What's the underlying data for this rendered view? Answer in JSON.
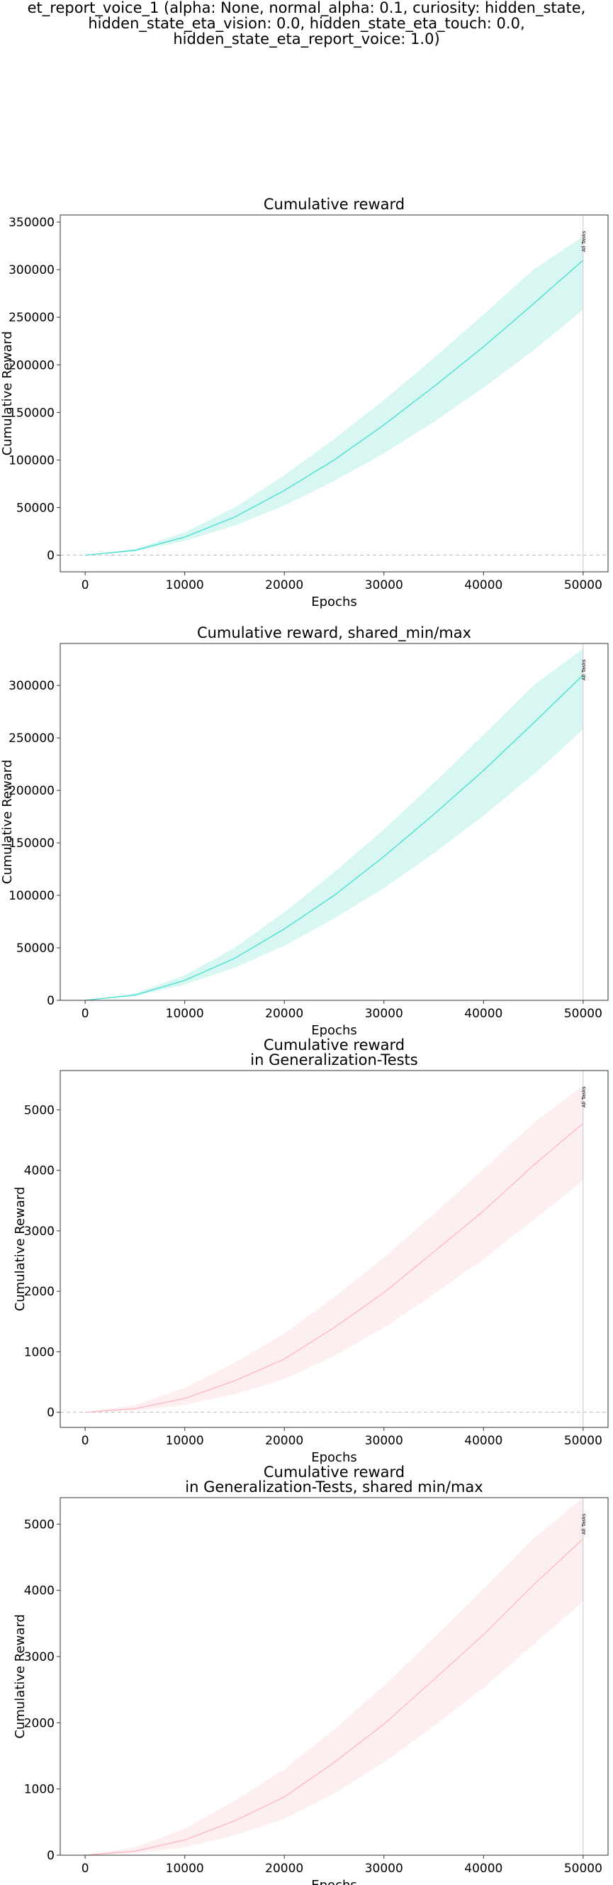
{
  "figure": {
    "suptitle_lines": [
      "et_report_voice_1 (alpha: None, normal_alpha: 0.1, curiosity: hidden_state,",
      "hidden_state_eta_vision: 0.0, hidden_state_eta_touch: 0.0,",
      "hidden_state_eta_report_voice: 1.0)"
    ]
  },
  "chart_data": [
    {
      "type": "line",
      "title_lines": [
        "Cumulative reward"
      ],
      "xlabel": "Epochs",
      "ylabel": "Cumulative Reward",
      "xlim": [
        -2500,
        52500
      ],
      "ylim": [
        -17500,
        357500
      ],
      "xticks": [
        0,
        10000,
        20000,
        30000,
        40000,
        50000
      ],
      "yticks": [
        0,
        50000,
        100000,
        150000,
        200000,
        250000,
        300000,
        350000
      ],
      "hline_zero": true,
      "vline": {
        "x": 50000,
        "label": "All Tasks"
      },
      "color": "#40e0d0",
      "band_color": "#d8f7f3",
      "series": [
        {
          "x": [
            0,
            5000,
            10000,
            15000,
            20000,
            25000,
            30000,
            35000,
            40000,
            45000,
            50000
          ],
          "mean": [
            0,
            5000,
            19000,
            40000,
            68000,
            100000,
            137000,
            177000,
            219000,
            264000,
            310000
          ],
          "min": [
            0,
            4000,
            15000,
            31000,
            52000,
            78000,
            107000,
            140000,
            176000,
            215000,
            258000
          ],
          "max": [
            0,
            6500,
            24000,
            50000,
            84000,
            122000,
            163000,
            207000,
            253000,
            300000,
            335000
          ]
        }
      ]
    },
    {
      "type": "line",
      "title_lines": [
        "Cumulative reward, shared_min/max"
      ],
      "xlabel": "Epochs",
      "ylabel": "Cumulative Reward",
      "xlim": [
        -2500,
        52500
      ],
      "ylim": [
        0,
        340000
      ],
      "xticks": [
        0,
        10000,
        20000,
        30000,
        40000,
        50000
      ],
      "yticks": [
        0,
        50000,
        100000,
        150000,
        200000,
        250000,
        300000
      ],
      "hline_zero": false,
      "vline": {
        "x": 50000,
        "label": "All Tasks"
      },
      "color": "#40e0d0",
      "band_color": "#d8f7f3",
      "series": [
        {
          "x": [
            0,
            5000,
            10000,
            15000,
            20000,
            25000,
            30000,
            35000,
            40000,
            45000,
            50000
          ],
          "mean": [
            0,
            5000,
            19000,
            40000,
            68000,
            100000,
            137000,
            177000,
            219000,
            264000,
            310000
          ],
          "min": [
            0,
            4000,
            15000,
            31000,
            52000,
            78000,
            107000,
            140000,
            176000,
            215000,
            258000
          ],
          "max": [
            0,
            6500,
            24000,
            50000,
            84000,
            122000,
            163000,
            207000,
            253000,
            300000,
            335000
          ]
        }
      ]
    },
    {
      "type": "line",
      "title_lines": [
        "Cumulative reward",
        "in Generalization-Tests"
      ],
      "xlabel": "Epochs",
      "ylabel": "Cumulative Reward",
      "xlim": [
        -2500,
        52500
      ],
      "ylim": [
        -250,
        5650
      ],
      "xticks": [
        0,
        10000,
        20000,
        30000,
        40000,
        50000
      ],
      "yticks": [
        0,
        1000,
        2000,
        3000,
        4000,
        5000
      ],
      "hline_zero": true,
      "vline": {
        "x": 50000,
        "label": "All Tasks"
      },
      "color": "#ffb6c1",
      "band_color": "#fdeef0",
      "series": [
        {
          "x": [
            0,
            5000,
            10000,
            15000,
            20000,
            25000,
            30000,
            35000,
            40000,
            45000,
            50000
          ],
          "mean": [
            0,
            60,
            230,
            520,
            880,
            1400,
            1980,
            2650,
            3330,
            4080,
            4780
          ],
          "min": [
            0,
            30,
            120,
            300,
            550,
            930,
            1400,
            1950,
            2530,
            3180,
            3830
          ],
          "max": [
            0,
            120,
            400,
            820,
            1300,
            1900,
            2560,
            3280,
            4020,
            4780,
            5400
          ]
        }
      ]
    },
    {
      "type": "line",
      "title_lines": [
        "Cumulative reward",
        "in Generalization-Tests, shared min/max"
      ],
      "xlabel": "Epochs",
      "ylabel": "Cumulative Reward",
      "xlim": [
        -2500,
        52500
      ],
      "ylim": [
        0,
        5400
      ],
      "xticks": [
        0,
        10000,
        20000,
        30000,
        40000,
        50000
      ],
      "yticks": [
        0,
        1000,
        2000,
        3000,
        4000,
        5000
      ],
      "hline_zero": false,
      "vline": {
        "x": 50000,
        "label": "All Tasks"
      },
      "color": "#ffb6c1",
      "band_color": "#fdeef0",
      "series": [
        {
          "x": [
            0,
            5000,
            10000,
            15000,
            20000,
            25000,
            30000,
            35000,
            40000,
            45000,
            50000
          ],
          "mean": [
            0,
            60,
            230,
            520,
            880,
            1400,
            1980,
            2650,
            3330,
            4080,
            4780
          ],
          "min": [
            0,
            30,
            120,
            300,
            550,
            930,
            1400,
            1950,
            2530,
            3180,
            3830
          ],
          "max": [
            0,
            120,
            400,
            820,
            1300,
            1900,
            2560,
            3280,
            4020,
            4780,
            5400
          ]
        }
      ]
    }
  ]
}
